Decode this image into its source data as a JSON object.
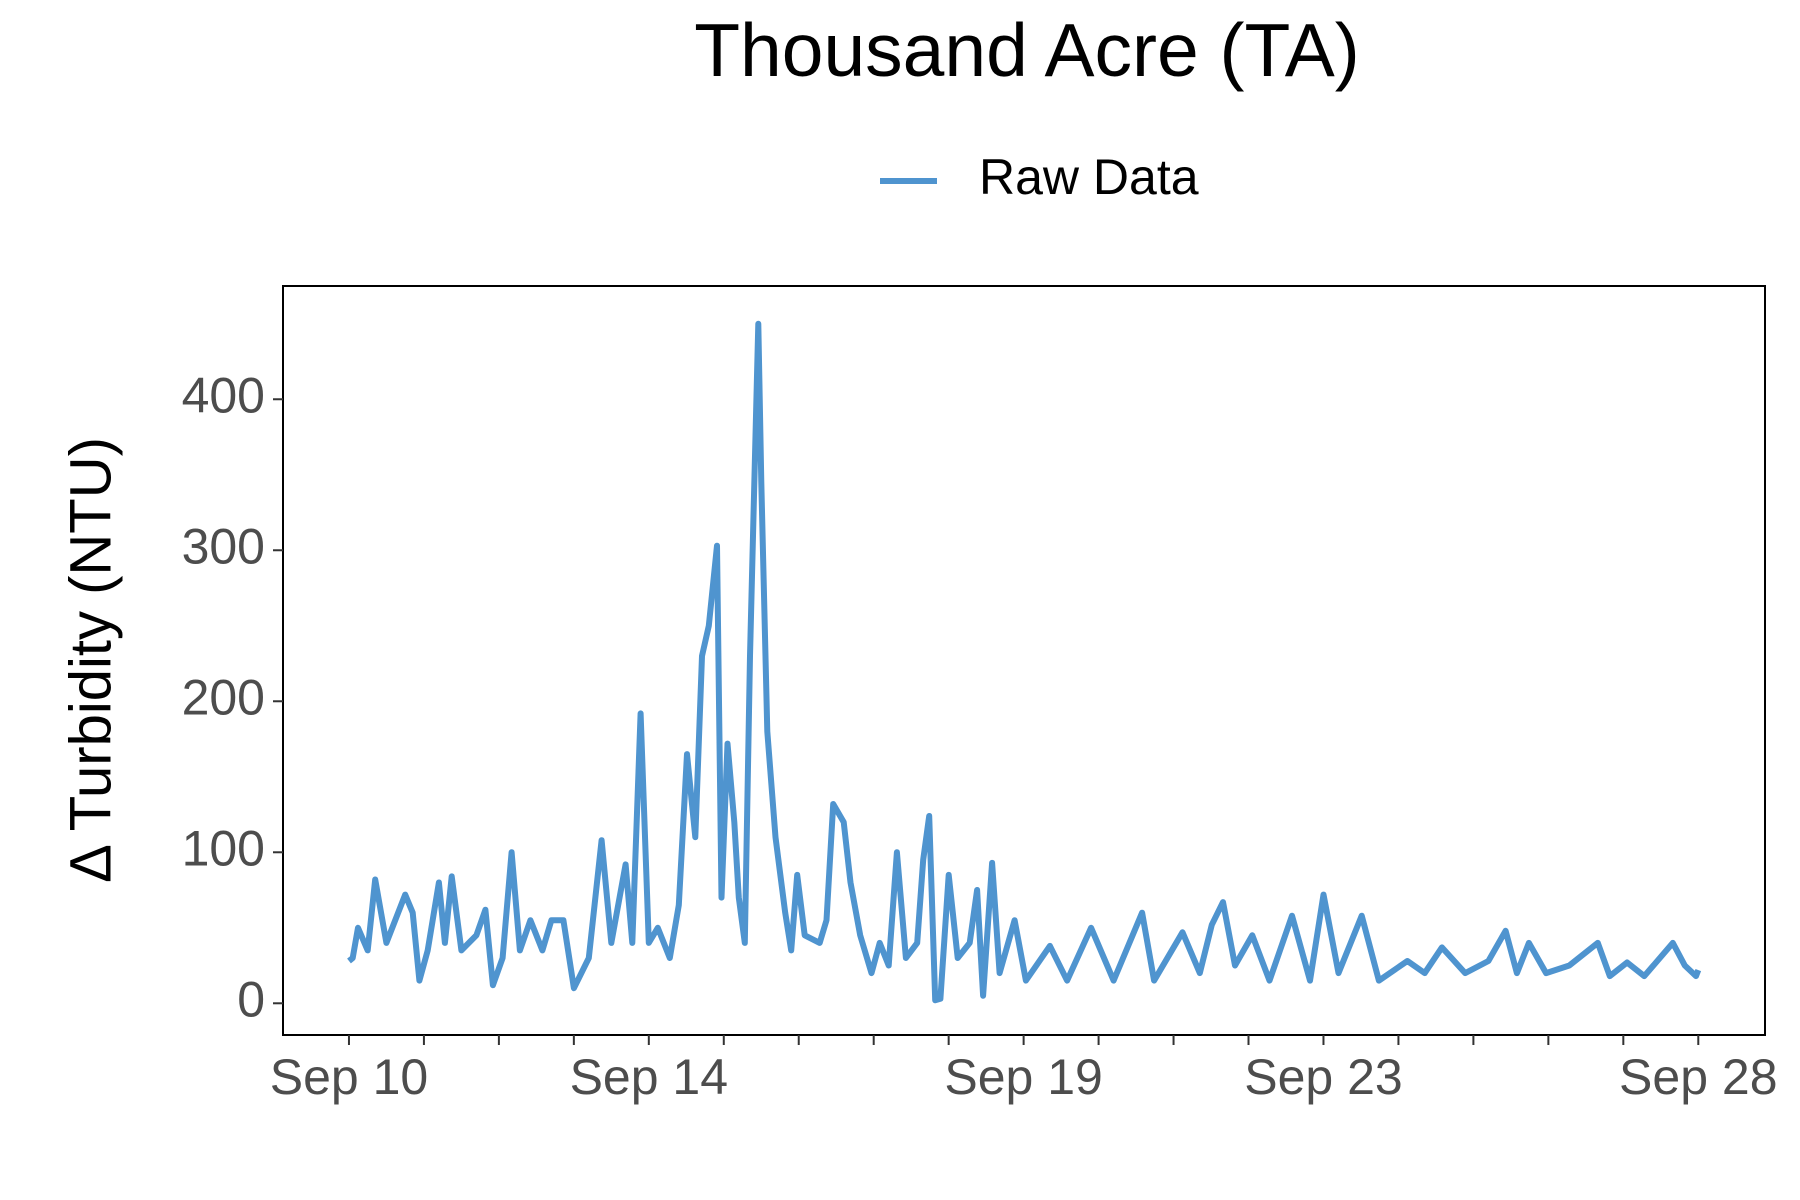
{
  "chart_data": {
    "type": "line",
    "title": "Thousand Acre (TA)",
    "y_label": "Δ Turbidity (NTU)",
    "legend_position": "top",
    "xlim": [
      9.12,
      28.89
    ],
    "xticks": [
      {
        "value": 10,
        "label": "Sep 10"
      },
      {
        "value": 14,
        "label": "Sep 14"
      },
      {
        "value": 19,
        "label": "Sep 19"
      },
      {
        "value": 23,
        "label": "Sep 23"
      },
      {
        "value": 28,
        "label": "Sep 28"
      }
    ],
    "xminorticks": [
      11,
      12,
      13,
      15,
      16,
      17,
      18,
      20,
      21,
      22,
      24,
      25,
      26,
      27
    ],
    "ylim": [
      -21,
      475
    ],
    "yticks": [
      0,
      100,
      200,
      300,
      400
    ],
    "x": [
      10.0,
      10.05,
      10.12,
      10.25,
      10.35,
      10.5,
      10.75,
      10.85,
      10.94,
      11.05,
      11.2,
      11.28,
      11.37,
      11.5,
      11.7,
      11.82,
      11.92,
      12.05,
      12.17,
      12.28,
      12.42,
      12.58,
      12.7,
      12.86,
      13.0,
      13.2,
      13.37,
      13.5,
      13.69,
      13.78,
      13.89,
      14.0,
      14.12,
      14.28,
      14.4,
      14.51,
      14.62,
      14.71,
      14.8,
      14.91,
      14.97,
      15.05,
      15.14,
      15.2,
      15.28,
      15.35,
      15.46,
      15.5,
      15.58,
      15.69,
      15.82,
      15.9,
      15.98,
      16.08,
      16.28,
      16.37,
      16.46,
      16.6,
      16.69,
      16.82,
      16.97,
      17.08,
      17.2,
      17.31,
      17.43,
      17.58,
      17.66,
      17.74,
      17.82,
      17.89,
      18.0,
      18.12,
      18.28,
      18.38,
      18.46,
      18.58,
      18.68,
      18.88,
      19.03,
      19.35,
      19.58,
      19.9,
      20.2,
      20.58,
      20.74,
      21.12,
      21.35,
      21.51,
      21.66,
      21.82,
      22.05,
      22.28,
      22.58,
      22.82,
      23.0,
      23.2,
      23.51,
      23.74,
      24.12,
      24.35,
      24.58,
      24.89,
      25.2,
      25.43,
      25.58,
      25.74,
      25.97,
      26.28,
      26.66,
      26.82,
      27.05,
      27.28,
      27.66,
      27.82,
      27.97,
      28.0
    ],
    "series": [
      {
        "name": "Raw Data",
        "color": "#4f94cf",
        "values": [
          28,
          30,
          50,
          35,
          82,
          40,
          72,
          60,
          15,
          35,
          80,
          40,
          84,
          35,
          45,
          62,
          12,
          30,
          100,
          35,
          55,
          35,
          55,
          55,
          10,
          30,
          108,
          40,
          92,
          40,
          192,
          40,
          50,
          30,
          65,
          165,
          110,
          230,
          250,
          303,
          70,
          172,
          120,
          70,
          40,
          230,
          450,
          345,
          180,
          110,
          60,
          35,
          85,
          45,
          40,
          55,
          132,
          120,
          80,
          45,
          20,
          40,
          25,
          100,
          30,
          40,
          95,
          124,
          2,
          3,
          85,
          30,
          40,
          75,
          5,
          93,
          20,
          55,
          15,
          38,
          15,
          50,
          15,
          60,
          15,
          47,
          20,
          52,
          67,
          25,
          45,
          15,
          58,
          15,
          72,
          20,
          58,
          15,
          28,
          20,
          37,
          20,
          28,
          48,
          20,
          40,
          20,
          25,
          40,
          18,
          27,
          18,
          40,
          25,
          18,
          22
        ]
      }
    ]
  }
}
